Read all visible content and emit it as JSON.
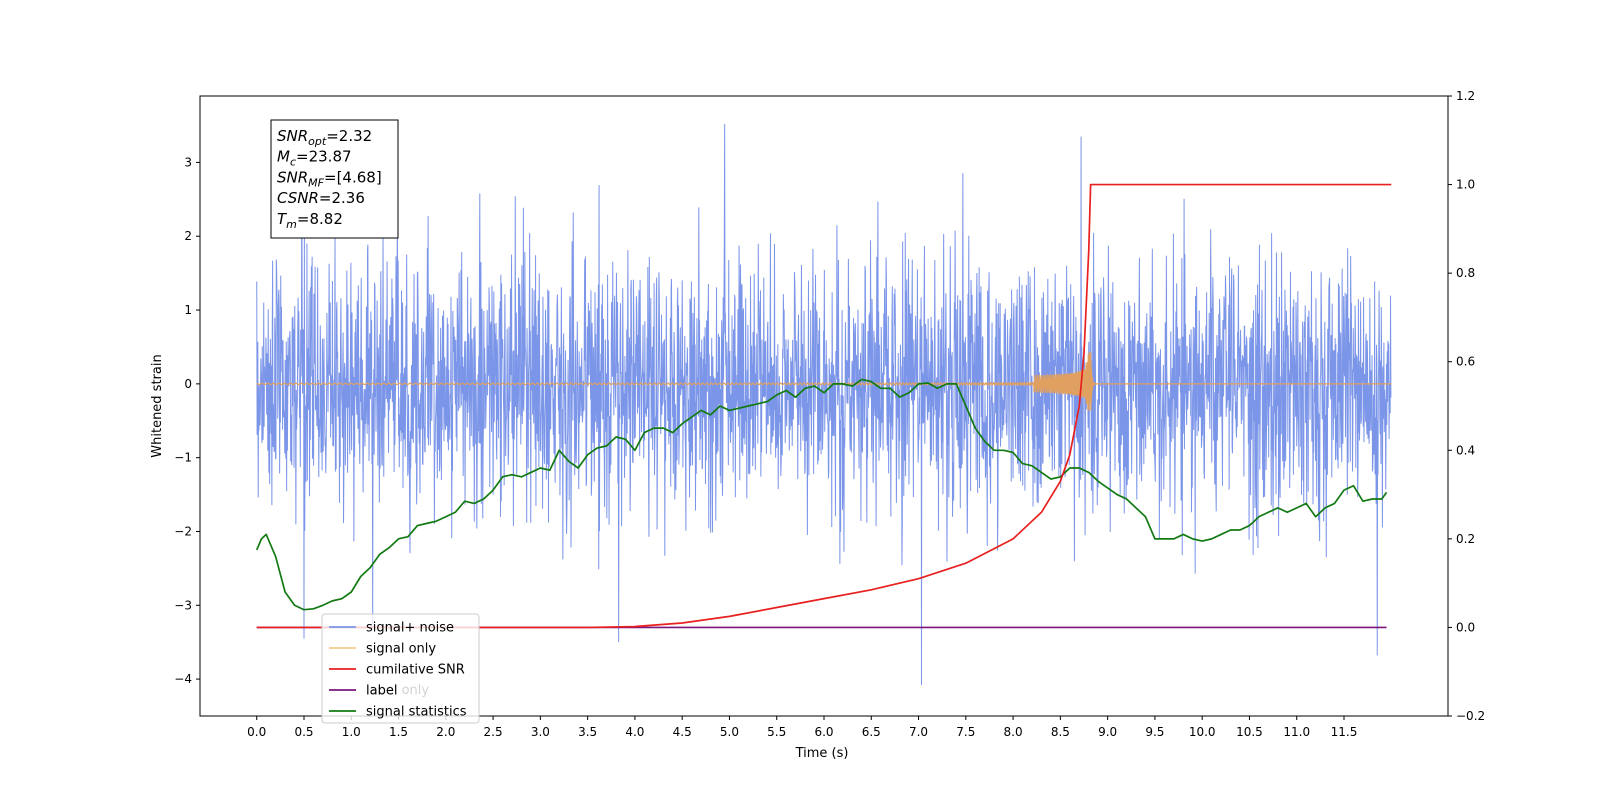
{
  "chart_data": {
    "type": "line",
    "title": "",
    "xlabel": "Time (s)",
    "ylabel": "Whitened strain",
    "xlim": [
      -0.6,
      12.6
    ],
    "ylim": [
      -4.5,
      3.9
    ],
    "y2lim": [
      -0.2,
      1.2
    ],
    "x_ticks": [
      "0.0",
      "0.5",
      "1.0",
      "1.5",
      "2.0",
      "2.5",
      "3.0",
      "3.5",
      "4.0",
      "4.5",
      "5.0",
      "5.5",
      "6.0",
      "6.5",
      "7.0",
      "7.5",
      "8.0",
      "8.5",
      "9.0",
      "9.5",
      "10.0",
      "10.5",
      "11.0",
      "11.5"
    ],
    "y_ticks": [
      "−4",
      "−3",
      "−2",
      "−1",
      "0",
      "1",
      "2",
      "3"
    ],
    "y2_ticks": [
      "−0.2",
      "0.0",
      "0.2",
      "0.4",
      "0.6",
      "0.8",
      "1.0",
      "1.2"
    ],
    "annotation": {
      "lines": [
        {
          "name": "SNR",
          "sub": "opt",
          "value": "=2.32"
        },
        {
          "name": "M",
          "sub": "c",
          "value": "=23.87"
        },
        {
          "name": "SNR",
          "sub": "MF",
          "value": "=[4.68]"
        },
        {
          "name": "CSNR",
          "sub": "",
          "value": "=2.36"
        },
        {
          "name": "T",
          "sub": "m",
          "value": "=8.82"
        }
      ]
    },
    "legend": {
      "placement": "lower-left",
      "entries": [
        {
          "label": "signal+ noise",
          "color": "#7b95e8"
        },
        {
          "label": "signal only",
          "color": "#f5c98a"
        },
        {
          "label": "cumilative SNR",
          "color": "#e8201f"
        },
        {
          "label": "label",
          "color": "#7b177b"
        },
        {
          "label": "signal statistics",
          "color": "#127a12"
        }
      ],
      "hidden_text": [
        "label only"
      ]
    },
    "series": [
      {
        "name": "signal+ noise",
        "axis": "left",
        "color": "#7b95e8",
        "description": "dense noise, roughly Gaussian with std ~0.85, x from 0.0 to 12.0",
        "sample_rate": 256,
        "noise_std": 0.85,
        "notable_extremes": [
          [
            4.95,
            3.52
          ],
          [
            8.72,
            3.35
          ],
          [
            0.5,
            -3.45
          ],
          [
            3.83,
            -3.5
          ],
          [
            7.03,
            -4.08
          ],
          [
            11.85,
            -3.68
          ]
        ]
      },
      {
        "name": "signal only",
        "axis": "left",
        "color": "#e0a060",
        "description": "chirp near zero growing to amplitude ~0.5 at merger time 8.82 then ringdown",
        "merger_time": 8.82,
        "peak_amplitude": 0.5
      },
      {
        "name": "cumilative SNR",
        "axis": "right",
        "color": "#e8201f",
        "x": [
          0.0,
          3.5,
          4.0,
          4.5,
          5.0,
          5.5,
          6.0,
          6.5,
          7.0,
          7.5,
          8.0,
          8.3,
          8.5,
          8.6,
          8.7,
          8.75,
          8.8,
          8.82,
          12.0
        ],
        "y": [
          0.0,
          0.0,
          0.002,
          0.01,
          0.025,
          0.045,
          0.065,
          0.085,
          0.11,
          0.145,
          0.2,
          0.26,
          0.33,
          0.39,
          0.5,
          0.62,
          0.85,
          1.0,
          1.0
        ]
      },
      {
        "name": "label",
        "axis": "right",
        "color": "#7b177b",
        "x": [
          0.0,
          11.95
        ],
        "y": [
          0.0,
          0.0
        ]
      },
      {
        "name": "signal statistics",
        "axis": "right",
        "color": "#127a12",
        "x": [
          0.0,
          0.05,
          0.1,
          0.2,
          0.3,
          0.4,
          0.5,
          0.6,
          0.7,
          0.8,
          0.9,
          1.0,
          1.1,
          1.2,
          1.3,
          1.4,
          1.5,
          1.6,
          1.7,
          1.8,
          1.9,
          2.0,
          2.1,
          2.2,
          2.3,
          2.4,
          2.5,
          2.6,
          2.7,
          2.8,
          2.9,
          3.0,
          3.1,
          3.2,
          3.3,
          3.4,
          3.5,
          3.6,
          3.7,
          3.8,
          3.9,
          4.0,
          4.1,
          4.2,
          4.3,
          4.4,
          4.5,
          4.6,
          4.7,
          4.8,
          4.9,
          5.0,
          5.1,
          5.2,
          5.3,
          5.4,
          5.5,
          5.6,
          5.7,
          5.8,
          5.9,
          6.0,
          6.1,
          6.2,
          6.3,
          6.4,
          6.5,
          6.6,
          6.7,
          6.8,
          6.9,
          7.0,
          7.1,
          7.2,
          7.3,
          7.4,
          7.5,
          7.6,
          7.7,
          7.8,
          7.9,
          8.0,
          8.1,
          8.2,
          8.3,
          8.4,
          8.5,
          8.6,
          8.7,
          8.8,
          8.9,
          9.0,
          9.1,
          9.2,
          9.3,
          9.4,
          9.5,
          9.6,
          9.7,
          9.8,
          9.9,
          10.0,
          10.1,
          10.2,
          10.3,
          10.4,
          10.5,
          10.6,
          10.7,
          10.8,
          10.9,
          11.0,
          11.1,
          11.2,
          11.3,
          11.4,
          11.5,
          11.6,
          11.7,
          11.8,
          11.9,
          11.95
        ],
        "y": [
          0.175,
          0.2,
          0.21,
          0.16,
          0.08,
          0.05,
          0.04,
          0.042,
          0.05,
          0.06,
          0.065,
          0.08,
          0.115,
          0.135,
          0.165,
          0.18,
          0.2,
          0.205,
          0.23,
          0.235,
          0.24,
          0.25,
          0.26,
          0.285,
          0.28,
          0.29,
          0.31,
          0.34,
          0.345,
          0.34,
          0.35,
          0.36,
          0.355,
          0.4,
          0.375,
          0.36,
          0.39,
          0.405,
          0.41,
          0.43,
          0.425,
          0.4,
          0.44,
          0.45,
          0.45,
          0.44,
          0.46,
          0.475,
          0.49,
          0.48,
          0.5,
          0.49,
          0.495,
          0.5,
          0.505,
          0.51,
          0.525,
          0.535,
          0.52,
          0.54,
          0.545,
          0.53,
          0.55,
          0.55,
          0.545,
          0.56,
          0.555,
          0.54,
          0.54,
          0.52,
          0.53,
          0.55,
          0.552,
          0.54,
          0.55,
          0.55,
          0.5,
          0.45,
          0.42,
          0.4,
          0.4,
          0.395,
          0.37,
          0.365,
          0.35,
          0.335,
          0.34,
          0.36,
          0.36,
          0.35,
          0.33,
          0.315,
          0.3,
          0.29,
          0.27,
          0.25,
          0.2,
          0.2,
          0.2,
          0.21,
          0.2,
          0.195,
          0.2,
          0.21,
          0.22,
          0.22,
          0.23,
          0.25,
          0.26,
          0.27,
          0.26,
          0.27,
          0.28,
          0.25,
          0.27,
          0.28,
          0.31,
          0.32,
          0.285,
          0.29,
          0.29,
          0.305
        ]
      }
    ]
  }
}
